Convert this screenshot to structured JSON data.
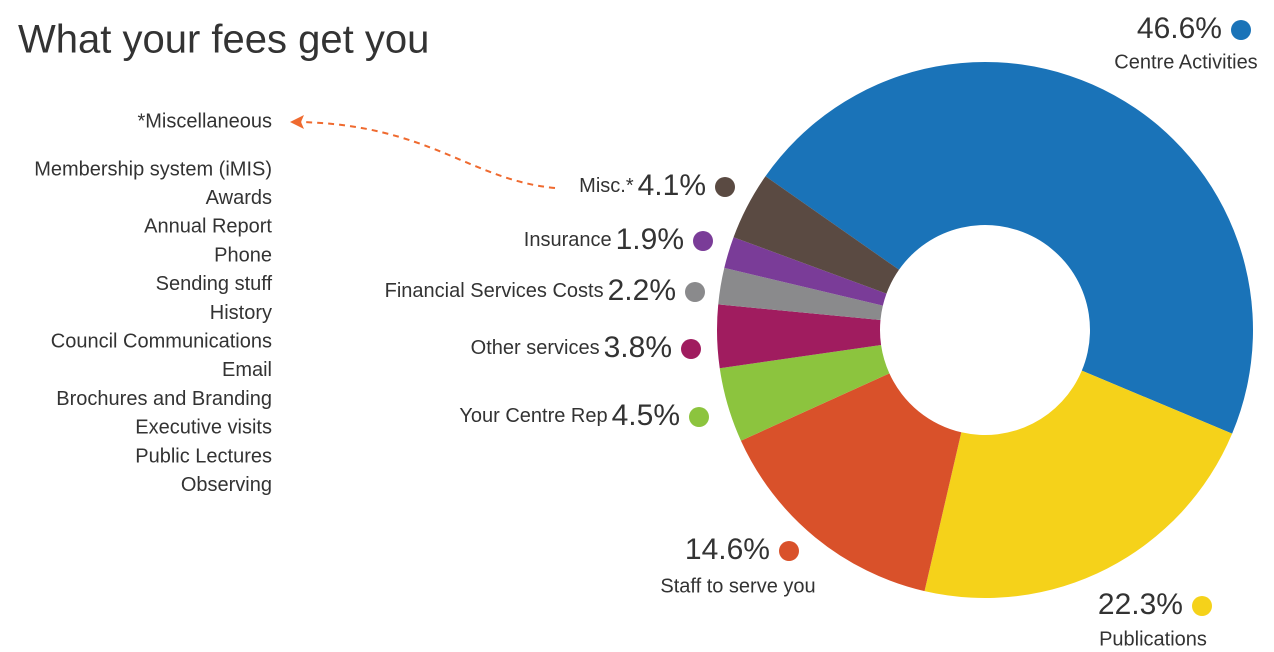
{
  "chart_data": {
    "type": "donut",
    "title": "What your fees get you",
    "categories": [
      "Centre Activities",
      "Publications",
      "Staff to serve you",
      "Your Centre Rep",
      "Other services",
      "Financial Services Costs",
      "Insurance",
      "Misc.*"
    ],
    "values": [
      46.6,
      22.3,
      14.6,
      4.5,
      3.8,
      2.2,
      1.9,
      4.1
    ],
    "value_labels": [
      "46.6%",
      "22.3%",
      "14.6%",
      "4.5%",
      "3.8%",
      "2.2%",
      "1.9%",
      "4.1%"
    ],
    "colors": [
      "#1a73b8",
      "#f5d21a",
      "#d9512a",
      "#8cc43e",
      "#a01c5f",
      "#8a8a8c",
      "#7a3c98",
      "#5a4a42"
    ],
    "misc_title": "*Miscellaneous",
    "misc_items": [
      "Membership system (iMIS)",
      "Awards",
      "Annual Report",
      "Phone",
      "Sending stuff",
      "History",
      "Council Communications",
      "Email",
      "Brochures and Branding",
      "Executive visits",
      "Public Lectures",
      "Observing"
    ]
  }
}
